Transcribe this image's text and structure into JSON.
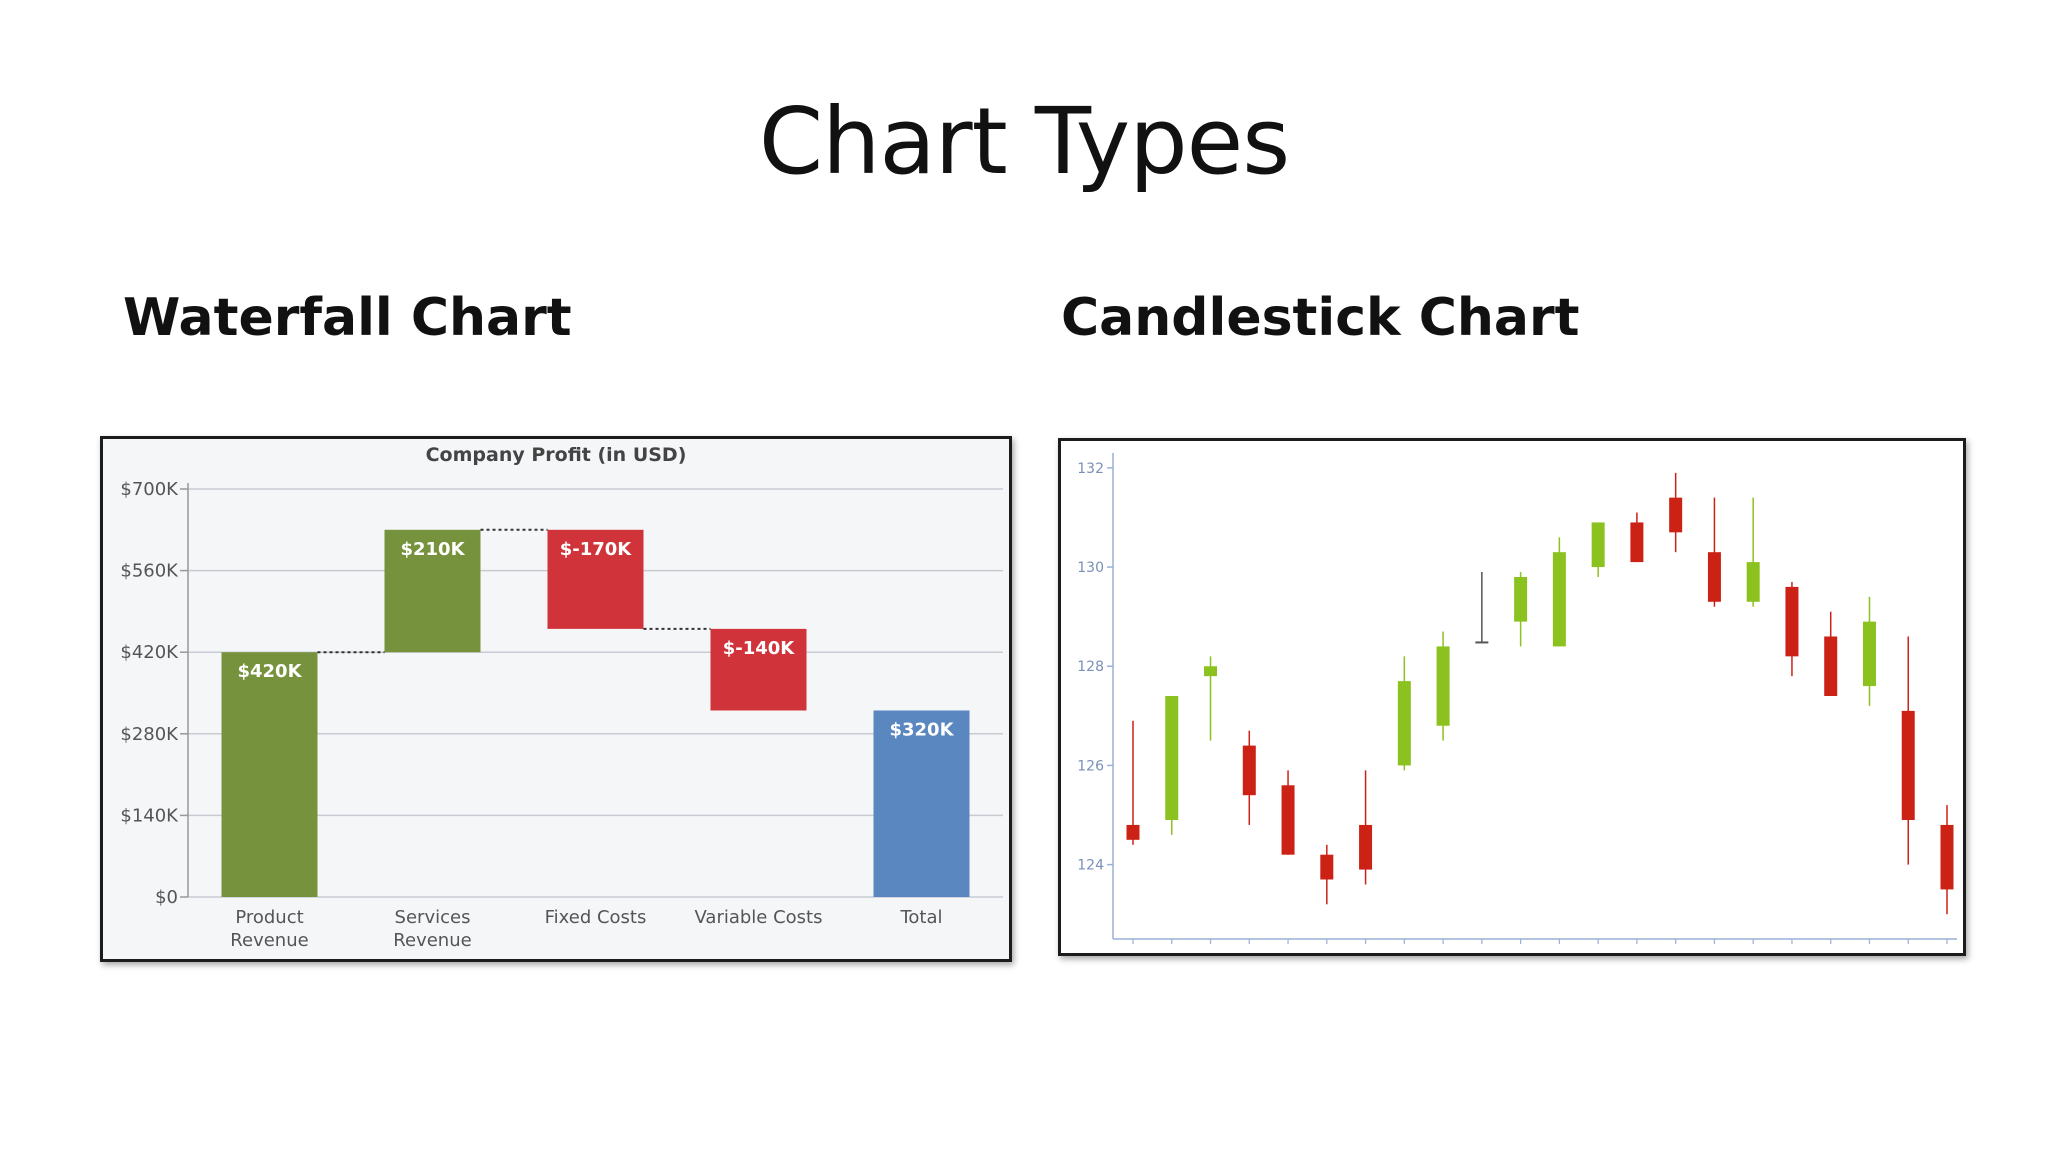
{
  "slide": {
    "title": "Chart Types",
    "left_heading": "Waterfall Chart",
    "right_heading": "Candlestick Chart"
  },
  "chart_data": [
    {
      "type": "bar",
      "subtype": "waterfall",
      "title": "Company Profit (in USD)",
      "categories": [
        "Product Revenue",
        "Services Revenue",
        "Fixed Costs",
        "Variable Costs",
        "Total"
      ],
      "category_lines": [
        [
          "Product",
          "Revenue"
        ],
        [
          "Services",
          "Revenue"
        ],
        [
          "Fixed Costs"
        ],
        [
          "Variable Costs"
        ],
        [
          "Total"
        ]
      ],
      "values": [
        420,
        210,
        -170,
        -140,
        320
      ],
      "kinds": [
        "increase",
        "increase",
        "decrease",
        "decrease",
        "total"
      ],
      "data_labels": [
        "$420K",
        "$210K",
        "$-170K",
        "$-140K",
        "$320K"
      ],
      "yticks": [
        0,
        140,
        280,
        420,
        560,
        700
      ],
      "ytick_labels": [
        "$0",
        "$140K",
        "$280K",
        "$420K",
        "$560K",
        "$700K"
      ],
      "ylim": [
        0,
        700
      ],
      "grid": true,
      "colors": {
        "increase": "#76923c",
        "decrease": "#d0343a",
        "total": "#5a87c0",
        "connector": "#333333"
      }
    },
    {
      "type": "candlestick",
      "yticks": [
        124,
        126,
        128,
        130,
        132
      ],
      "ylim": [
        122.5,
        132.3
      ],
      "grid": false,
      "colors": {
        "up": "#8cc21f",
        "down": "#cc2216",
        "neutral": "#555555",
        "axis": "#9ab0d6",
        "tick_text": "#7a90b8"
      },
      "candles": [
        {
          "open": 124.8,
          "close": 124.5,
          "high": 126.9,
          "low": 124.4
        },
        {
          "open": 124.9,
          "close": 127.4,
          "high": 127.4,
          "low": 124.6
        },
        {
          "open": 127.8,
          "close": 128.0,
          "high": 128.2,
          "low": 126.5
        },
        {
          "open": 126.4,
          "close": 125.4,
          "high": 126.7,
          "low": 124.8
        },
        {
          "open": 125.6,
          "close": 124.2,
          "high": 125.9,
          "low": 124.2
        },
        {
          "open": 124.2,
          "close": 123.7,
          "high": 124.4,
          "low": 123.2
        },
        {
          "open": 124.8,
          "close": 123.9,
          "high": 125.9,
          "low": 123.6
        },
        {
          "open": 126.0,
          "close": 127.7,
          "high": 128.2,
          "low": 125.9
        },
        {
          "open": 126.8,
          "close": 128.4,
          "high": 128.7,
          "low": 126.5
        },
        {
          "open": 128.5,
          "close": 128.5,
          "high": 129.9,
          "low": 128.5
        },
        {
          "open": 128.9,
          "close": 129.8,
          "high": 129.9,
          "low": 128.4
        },
        {
          "open": 128.4,
          "close": 130.3,
          "high": 130.6,
          "low": 128.4
        },
        {
          "open": 130.0,
          "close": 130.9,
          "high": 130.9,
          "low": 129.8
        },
        {
          "open": 130.9,
          "close": 130.1,
          "high": 131.1,
          "low": 130.1
        },
        {
          "open": 131.4,
          "close": 130.7,
          "high": 131.9,
          "low": 130.3
        },
        {
          "open": 130.3,
          "close": 129.3,
          "high": 131.4,
          "low": 129.2
        },
        {
          "open": 129.3,
          "close": 130.1,
          "high": 131.4,
          "low": 129.2
        },
        {
          "open": 129.6,
          "close": 128.2,
          "high": 129.7,
          "low": 127.8
        },
        {
          "open": 128.6,
          "close": 127.4,
          "high": 129.1,
          "low": 127.4
        },
        {
          "open": 127.6,
          "close": 128.9,
          "high": 129.4,
          "low": 127.2
        },
        {
          "open": 127.1,
          "close": 124.9,
          "high": 128.6,
          "low": 124.0
        },
        {
          "open": 124.8,
          "close": 123.5,
          "high": 125.2,
          "low": 123.0
        }
      ]
    }
  ]
}
